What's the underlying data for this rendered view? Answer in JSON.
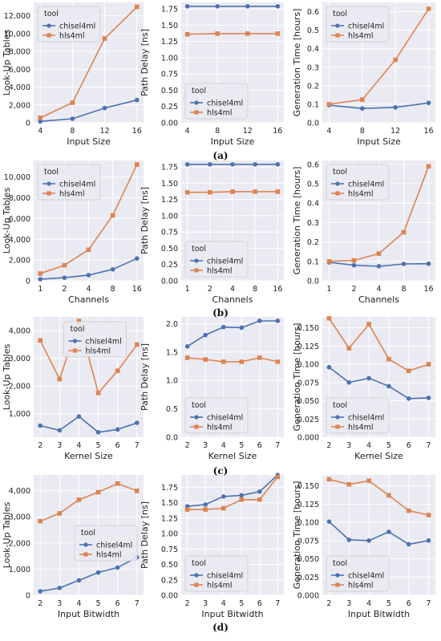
{
  "colors": {
    "series1": "#4c72b0",
    "series2": "#dd8452",
    "background": "#eaeaf2",
    "grid": "#ffffff",
    "text": "#222222"
  },
  "row_labels": [
    "(a)",
    "(b)",
    "(c)",
    "(d)"
  ],
  "chart_data": [
    {
      "id": "a1",
      "type": "line",
      "xlabel": "Input Size",
      "ylabel": "Look-Up Tables",
      "categories": [
        "4",
        "8",
        "12",
        "16"
      ],
      "ylim": [
        0,
        13500
      ],
      "yticks": [
        0,
        2000,
        4000,
        6000,
        8000,
        10000,
        12000
      ],
      "yticklabels": [
        "0",
        "2,000",
        "4,000",
        "6,000",
        "8,000",
        "10,000",
        "12,000"
      ],
      "legend": "top-left",
      "legend_title": "tool",
      "series": [
        {
          "name": "chisel4ml",
          "values": [
            150,
            450,
            1650,
            2550
          ]
        },
        {
          "name": "hls4ml",
          "values": [
            550,
            2250,
            9450,
            13000
          ]
        }
      ]
    },
    {
      "id": "a2",
      "type": "line",
      "xlabel": "Input Size",
      "ylabel": "Path Delay [ns]",
      "categories": [
        "4",
        "8",
        "12",
        "16"
      ],
      "ylim": [
        0,
        1.85
      ],
      "yticks": [
        0,
        0.25,
        0.5,
        0.75,
        1.0,
        1.25,
        1.5,
        1.75
      ],
      "yticklabels": [
        "0.00",
        "0.25",
        "0.50",
        "0.75",
        "1.00",
        "1.25",
        "1.50",
        "1.75"
      ],
      "legend": "bottom-left",
      "legend_title": "tool",
      "series": [
        {
          "name": "chisel4ml",
          "values": [
            1.79,
            1.79,
            1.79,
            1.79
          ]
        },
        {
          "name": "hls4ml",
          "values": [
            1.36,
            1.37,
            1.37,
            1.37
          ]
        }
      ]
    },
    {
      "id": "a3",
      "type": "line",
      "xlabel": "Input Size",
      "ylabel": "Generation Time [hours]",
      "categories": [
        "4",
        "8",
        "12",
        "16"
      ],
      "ylim": [
        0,
        0.65
      ],
      "yticks": [
        0,
        0.1,
        0.2,
        0.3,
        0.4,
        0.5,
        0.6
      ],
      "yticklabels": [
        "0.0",
        "0.1",
        "0.2",
        "0.3",
        "0.4",
        "0.5",
        "0.6"
      ],
      "legend": "top-left",
      "legend_title": "tool",
      "series": [
        {
          "name": "chisel4ml",
          "values": [
            0.095,
            0.077,
            0.083,
            0.107
          ]
        },
        {
          "name": "hls4ml",
          "values": [
            0.1,
            0.125,
            0.34,
            0.615
          ]
        }
      ]
    },
    {
      "id": "b1",
      "type": "line",
      "xlabel": "Channels",
      "ylabel": "Look-Up Tables",
      "categories": [
        "1",
        "2",
        "4",
        "8",
        "16"
      ],
      "ylim": [
        0,
        11600
      ],
      "yticks": [
        0,
        2000,
        4000,
        6000,
        8000,
        10000
      ],
      "yticklabels": [
        "0",
        "2,000",
        "4,000",
        "6,000",
        "8,000",
        "10,000"
      ],
      "legend": "top-left",
      "legend_title": "tool",
      "series": [
        {
          "name": "chisel4ml",
          "values": [
            150,
            300,
            550,
            1100,
            2150
          ]
        },
        {
          "name": "hls4ml",
          "values": [
            700,
            1500,
            3000,
            6300,
            11200
          ]
        }
      ]
    },
    {
      "id": "b2",
      "type": "line",
      "xlabel": "Channels",
      "ylabel": "Path Delay [ns]",
      "categories": [
        "1",
        "2",
        "4",
        "8",
        "16"
      ],
      "ylim": [
        0,
        1.85
      ],
      "yticks": [
        0,
        0.25,
        0.5,
        0.75,
        1.0,
        1.25,
        1.5,
        1.75
      ],
      "yticklabels": [
        "0.00",
        "0.25",
        "0.50",
        "0.75",
        "1.00",
        "1.25",
        "1.50",
        "1.75"
      ],
      "legend": "bottom-left",
      "legend_title": "tool",
      "series": [
        {
          "name": "chisel4ml",
          "values": [
            1.79,
            1.79,
            1.79,
            1.79,
            1.79
          ]
        },
        {
          "name": "hls4ml",
          "values": [
            1.36,
            1.36,
            1.37,
            1.37,
            1.37
          ]
        }
      ]
    },
    {
      "id": "b3",
      "type": "line",
      "xlabel": "Channels",
      "ylabel": "Generation Time [hours]",
      "categories": [
        "1",
        "2",
        "4",
        "8",
        "16"
      ],
      "ylim": [
        0,
        0.62
      ],
      "yticks": [
        0,
        0.1,
        0.2,
        0.3,
        0.4,
        0.5,
        0.6
      ],
      "yticklabels": [
        "0.0",
        "0.1",
        "0.2",
        "0.3",
        "0.4",
        "0.5",
        "0.6"
      ],
      "legend": "top-left",
      "legend_title": "tool",
      "series": [
        {
          "name": "chisel4ml",
          "values": [
            0.095,
            0.08,
            0.075,
            0.087,
            0.088
          ]
        },
        {
          "name": "hls4ml",
          "values": [
            0.1,
            0.105,
            0.14,
            0.25,
            0.59
          ]
        }
      ]
    },
    {
      "id": "c1",
      "type": "line",
      "xlabel": "Kernel Size",
      "ylabel": "Look-Up Tables",
      "categories": [
        "2",
        "3",
        "4",
        "5",
        "6",
        "7"
      ],
      "ylim": [
        150,
        4500
      ],
      "yticks": [
        1000,
        2000,
        3000,
        4000
      ],
      "yticklabels": [
        "1,000",
        "2,000",
        "3,000",
        "4,000"
      ],
      "legend": "top-center",
      "legend_title": "tool",
      "series": [
        {
          "name": "chisel4ml",
          "values": [
            570,
            400,
            900,
            330,
            430,
            670
          ]
        },
        {
          "name": "hls4ml",
          "values": [
            3650,
            2250,
            4350,
            1750,
            2550,
            3500
          ]
        }
      ]
    },
    {
      "id": "c2",
      "type": "line",
      "xlabel": "Kernel Size",
      "ylabel": "Path Delay [ns]",
      "categories": [
        "2",
        "3",
        "4",
        "5",
        "6",
        "7"
      ],
      "ylim": [
        0,
        2.12
      ],
      "yticks": [
        0,
        0.5,
        1.0,
        1.5,
        2.0
      ],
      "yticklabels": [
        "0.0",
        "0.5",
        "1.0",
        "1.5",
        "2.0"
      ],
      "legend": "bottom-left",
      "legend_title": "tool",
      "series": [
        {
          "name": "chisel4ml",
          "values": [
            1.6,
            1.8,
            1.94,
            1.93,
            2.05,
            2.05
          ]
        },
        {
          "name": "hls4ml",
          "values": [
            1.4,
            1.37,
            1.33,
            1.33,
            1.4,
            1.33
          ]
        }
      ]
    },
    {
      "id": "c3",
      "type": "line",
      "xlabel": "Kernel Size",
      "ylabel": "Generation Time [hours]",
      "categories": [
        "2",
        "3",
        "4",
        "5",
        "6",
        "7"
      ],
      "ylim": [
        0,
        0.165
      ],
      "yticks": [
        0,
        0.025,
        0.05,
        0.075,
        0.1,
        0.125,
        0.15
      ],
      "yticklabels": [
        "0.000",
        "0.025",
        "0.050",
        "0.075",
        "0.100",
        "0.125",
        "0.150"
      ],
      "legend": "bottom-left",
      "legend_title": "tool",
      "series": [
        {
          "name": "chisel4ml",
          "values": [
            0.096,
            0.075,
            0.081,
            0.07,
            0.053,
            0.054
          ]
        },
        {
          "name": "hls4ml",
          "values": [
            0.163,
            0.122,
            0.155,
            0.107,
            0.091,
            0.1
          ]
        }
      ]
    },
    {
      "id": "d1",
      "type": "line",
      "xlabel": "Input Bitwidth",
      "ylabel": "Look-Up Tables",
      "categories": [
        "2",
        "3",
        "4",
        "5",
        "6",
        "7"
      ],
      "ylim": [
        0,
        4600
      ],
      "yticks": [
        0,
        1000,
        2000,
        3000,
        4000
      ],
      "yticklabels": [
        "0",
        "1,000",
        "2,000",
        "3,000",
        "4,000"
      ],
      "legend": "center-right",
      "legend_title": "tool",
      "series": [
        {
          "name": "chisel4ml",
          "values": [
            150,
            280,
            570,
            870,
            1060,
            1450
          ]
        },
        {
          "name": "hls4ml",
          "values": [
            2830,
            3130,
            3650,
            3940,
            4270,
            3990
          ]
        }
      ]
    },
    {
      "id": "d2",
      "type": "line",
      "xlabel": "Input Bitwidth",
      "ylabel": "Path Delay [ns]",
      "categories": [
        "2",
        "3",
        "4",
        "5",
        "6",
        "7"
      ],
      "ylim": [
        0,
        1.95
      ],
      "yticks": [
        0,
        0.25,
        0.5,
        0.75,
        1.0,
        1.25,
        1.5,
        1.75
      ],
      "yticklabels": [
        "0.00",
        "0.25",
        "0.50",
        "0.75",
        "1.00",
        "1.25",
        "1.50",
        "1.75"
      ],
      "legend": "bottom-left",
      "legend_title": "tool",
      "series": [
        {
          "name": "chisel4ml",
          "values": [
            1.44,
            1.47,
            1.6,
            1.62,
            1.68,
            1.95
          ]
        },
        {
          "name": "hls4ml",
          "values": [
            1.39,
            1.39,
            1.41,
            1.55,
            1.55,
            1.92
          ]
        }
      ]
    },
    {
      "id": "d3",
      "type": "line",
      "xlabel": "Input Bitwidth",
      "ylabel": "Generation Time [hours]",
      "categories": [
        "2",
        "3",
        "4",
        "5",
        "6",
        "7"
      ],
      "ylim": [
        0,
        0.165
      ],
      "yticks": [
        0,
        0.025,
        0.05,
        0.075,
        0.1,
        0.125,
        0.15
      ],
      "yticklabels": [
        "0.000",
        "0.025",
        "0.050",
        "0.075",
        "0.100",
        "0.125",
        "0.150"
      ],
      "legend": "bottom-left",
      "legend_title": "tool",
      "series": [
        {
          "name": "chisel4ml",
          "values": [
            0.101,
            0.076,
            0.075,
            0.087,
            0.07,
            0.075
          ]
        },
        {
          "name": "hls4ml",
          "values": [
            0.159,
            0.152,
            0.157,
            0.137,
            0.116,
            0.11
          ]
        }
      ]
    }
  ]
}
